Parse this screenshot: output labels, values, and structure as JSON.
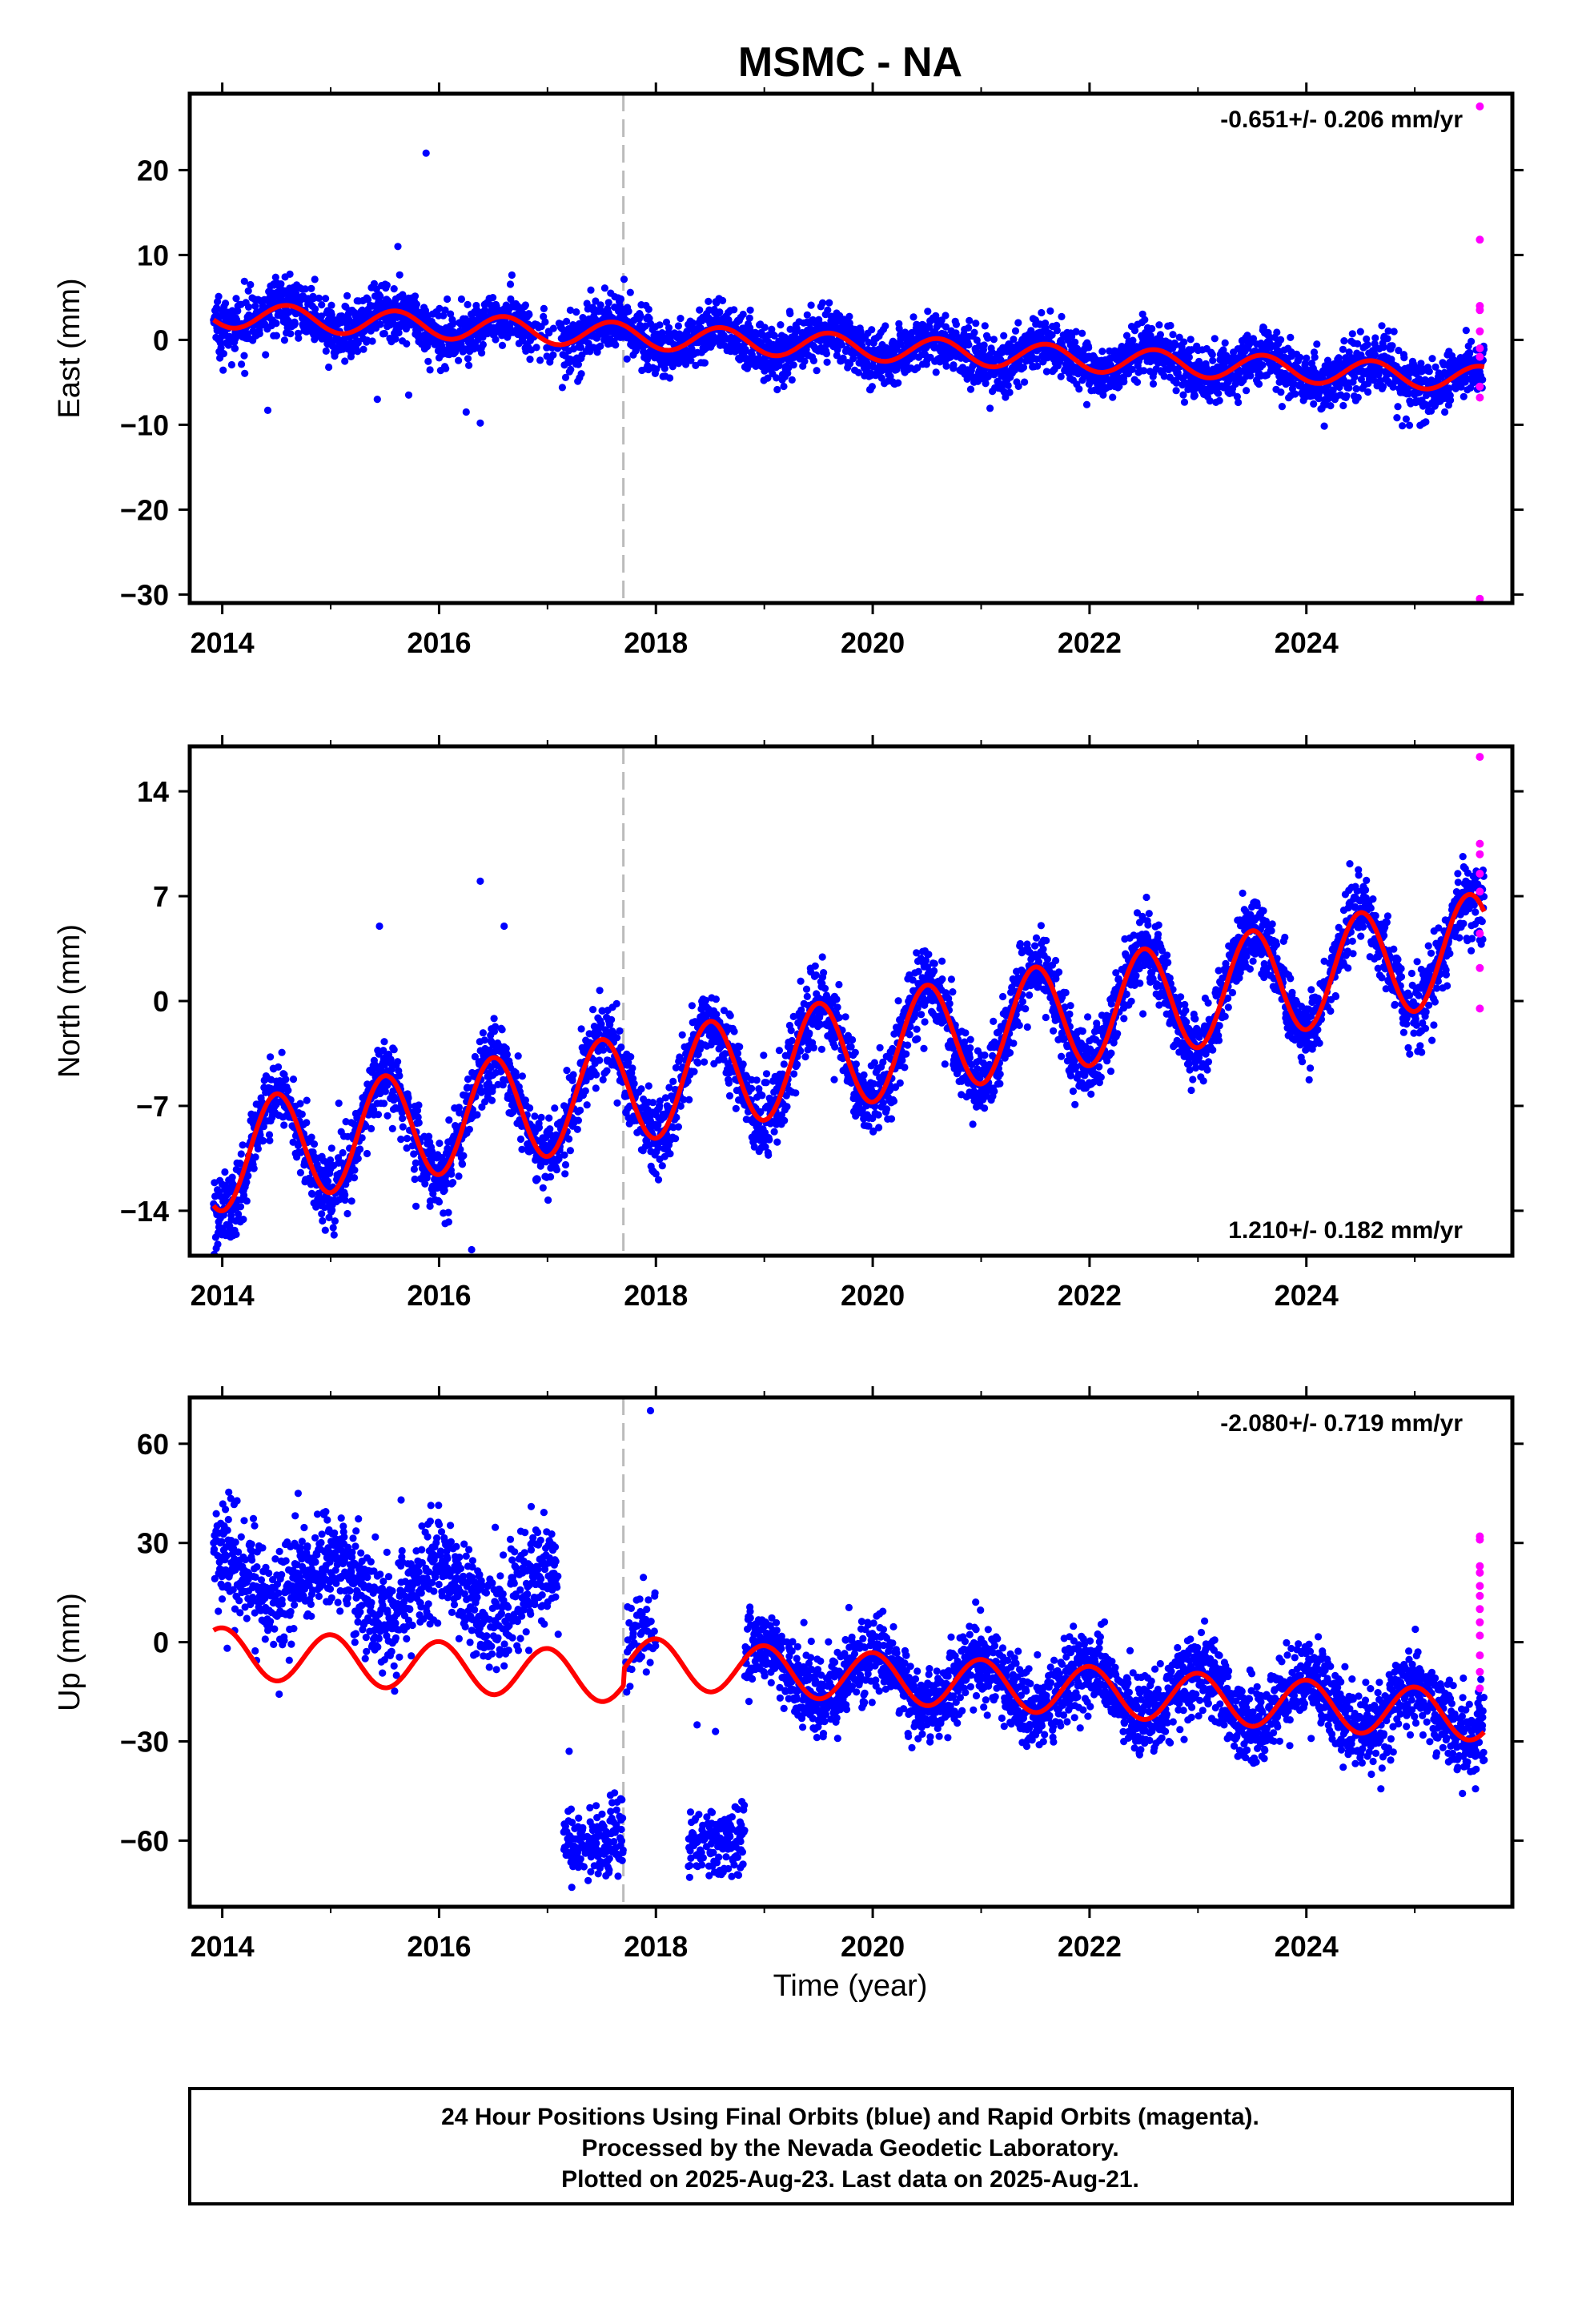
{
  "title": "MSMC - NA",
  "xlabel": "Time (year)",
  "colors": {
    "final": "#0000ff",
    "rapid": "#ff00ff",
    "model": "#ff0000",
    "event_line": "#bbbbbb",
    "frame": "#000000"
  },
  "footer": {
    "line1": "24 Hour Positions Using Final Orbits (blue) and Rapid Orbits (magenta).",
    "line2": "Processed by the Nevada Geodetic Laboratory.",
    "line3": "Plotted on 2025-Aug-23. Last data on 2025-Aug-21."
  },
  "chart_data": [
    {
      "type": "scatter",
      "component": "East",
      "ylabel": "East (mm)",
      "rate_label": "-0.651+/- 0.206 mm/yr",
      "xlim": [
        2013.7,
        2025.9
      ],
      "ylim": [
        -31,
        29
      ],
      "xticks": [
        "2014",
        "2016",
        "2018",
        "2020",
        "2022",
        "2024"
      ],
      "yticks": [
        20,
        10,
        0,
        -10,
        -20,
        -30
      ],
      "event_line_x": 2017.7,
      "data_start": 2013.92,
      "data_end": 2025.64,
      "model": {
        "offset_at_start": 3.0,
        "trend_mm_per_yr": -0.651,
        "annual_amplitude": 1.5,
        "peak_phase_yr": 0.6,
        "noise_mm": 1.6
      },
      "outliers": [
        [
          2015.88,
          22
        ],
        [
          2015.62,
          11
        ],
        [
          2014.42,
          -8.3
        ],
        [
          2016.25,
          -8.5
        ],
        [
          2016.38,
          -9.8
        ],
        [
          2015.72,
          -6.5
        ],
        [
          2015.43,
          -7
        ]
      ],
      "gaps": [
        [
          2016.85,
          2017.15
        ]
      ],
      "rapid_points": [
        [
          2025.6,
          27.5
        ],
        [
          2025.6,
          11.8
        ],
        [
          2025.6,
          4
        ],
        [
          2025.6,
          3.5
        ],
        [
          2025.6,
          1
        ],
        [
          2025.6,
          -1
        ],
        [
          2025.6,
          -2
        ],
        [
          2025.6,
          -5.5
        ],
        [
          2025.6,
          -6.8
        ],
        [
          2025.6,
          -30.5
        ]
      ]
    },
    {
      "type": "scatter",
      "component": "North",
      "ylabel": "North (mm)",
      "rate_label": "1.210+/- 0.182 mm/yr",
      "xlim": [
        2013.7,
        2025.9
      ],
      "ylim": [
        -17,
        17
      ],
      "xticks": [
        "2014",
        "2016",
        "2018",
        "2020",
        "2022",
        "2024"
      ],
      "yticks": [
        14,
        7,
        0,
        -7,
        -14
      ],
      "event_line_x": 2017.7,
      "data_start": 2013.92,
      "data_end": 2025.64,
      "model": {
        "offset_at_start": -10.5,
        "trend_mm_per_yr": 1.21,
        "annual_amplitude": 3.6,
        "peak_phase_yr": 0.5,
        "noise_mm": 1.2
      },
      "outliers": [
        [
          2014.95,
          -15.3
        ],
        [
          2016.3,
          -16.6
        ],
        [
          2016.38,
          8
        ],
        [
          2015.45,
          5
        ],
        [
          2016.6,
          5
        ]
      ],
      "gaps": [],
      "rapid_points": [
        [
          2025.6,
          16.3
        ],
        [
          2025.6,
          10.5
        ],
        [
          2025.6,
          9.8
        ],
        [
          2025.6,
          8.5
        ],
        [
          2025.6,
          7.3
        ],
        [
          2025.6,
          4.5
        ],
        [
          2025.6,
          2.2
        ],
        [
          2025.6,
          -0.5
        ]
      ]
    },
    {
      "type": "scatter",
      "component": "Up",
      "ylabel": "Up (mm)",
      "rate_label": "-2.080+/- 0.719 mm/yr",
      "xlim": [
        2013.7,
        2025.9
      ],
      "ylim": [
        -80,
        74
      ],
      "xticks": [
        "2014",
        "2016",
        "2018",
        "2020",
        "2022",
        "2024"
      ],
      "yticks": [
        60,
        30,
        0,
        -30,
        -60
      ],
      "event_line_x": 2017.7,
      "data_start": 2013.92,
      "data_end": 2025.64,
      "model": {
        "offset_at_start": 2.0,
        "trend_mm_per_yr": -2.08,
        "annual_amplitude": 7.5,
        "peak_phase_yr": 0.0,
        "noise_mm": 5.5
      },
      "segments": [
        {
          "from": 2013.92,
          "to": 2017.1,
          "offset": 18,
          "noise": 8,
          "density": 0.9
        },
        {
          "from": 2017.15,
          "to": 2017.7,
          "offset": -60,
          "noise": 5,
          "density": 0.8
        },
        {
          "from": 2017.72,
          "to": 2018.0,
          "offset": 3,
          "noise": 7,
          "density": 0.5
        },
        {
          "from": 2018.3,
          "to": 2018.82,
          "offset": -60,
          "noise": 6,
          "density": 0.8
        },
        {
          "from": 2018.82,
          "to": 2025.64,
          "offset": 0,
          "noise": 6,
          "density": 1.0
        }
      ],
      "outliers": [
        [
          2017.95,
          70
        ],
        [
          2014.7,
          45
        ],
        [
          2015.65,
          43
        ],
        [
          2016.85,
          41
        ],
        [
          2017.2,
          -33
        ],
        [
          2018.38,
          -25
        ],
        [
          2018.55,
          -27
        ]
      ],
      "rapid_points": [
        [
          2025.6,
          32
        ],
        [
          2025.6,
          31
        ],
        [
          2025.6,
          23
        ],
        [
          2025.6,
          21
        ],
        [
          2025.6,
          17
        ],
        [
          2025.6,
          14
        ],
        [
          2025.6,
          10
        ],
        [
          2025.6,
          6
        ],
        [
          2025.6,
          2
        ],
        [
          2025.6,
          -4
        ],
        [
          2025.6,
          -9
        ],
        [
          2025.6,
          -14
        ]
      ]
    }
  ]
}
